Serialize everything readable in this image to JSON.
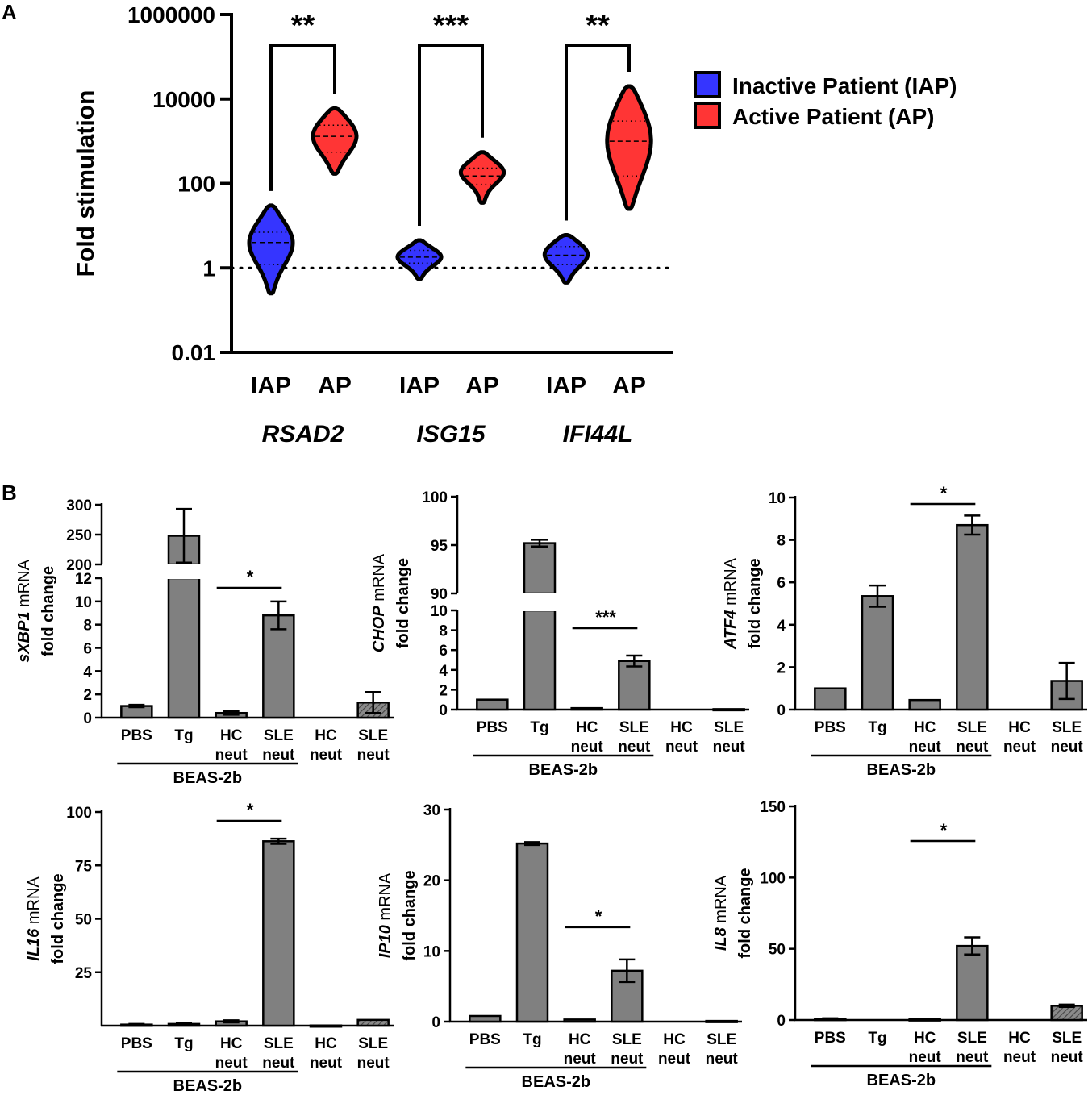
{
  "panel_labels": {
    "a": "A",
    "b": "B"
  },
  "colors": {
    "iap": "#3535ff",
    "ap": "#ff3535",
    "bar": "#808080",
    "hatch": "#555555"
  },
  "chart_data": [
    {
      "id": "A",
      "type": "violin",
      "title": "",
      "ylabel": "Fold stimulation",
      "yscale": "log",
      "ylim": [
        0.01,
        1000000
      ],
      "yticks": [
        0.01,
        1,
        100,
        10000,
        1000000
      ],
      "ytick_labels": [
        "0.01",
        "1",
        "100",
        "10000",
        "1000000"
      ],
      "reference_line": 1,
      "legend": {
        "placement": "right",
        "entries": [
          {
            "label": "Inactive Patient (IAP)",
            "color": "#3535ff"
          },
          {
            "label": "Active Patient (AP)",
            "color": "#ff3535"
          }
        ]
      },
      "groups": [
        {
          "gene": "RSAD2",
          "significance": "**",
          "violins": [
            {
              "label": "IAP",
              "group": "iap",
              "min": 0.25,
              "max": 30,
              "q1": 1.2,
              "median": 4,
              "q3": 7,
              "mode": 4.5
            },
            {
              "label": "AP",
              "group": "ap",
              "min": 170,
              "max": 6000,
              "q1": 550,
              "median": 1300,
              "q3": 2400,
              "mode": 1500
            }
          ]
        },
        {
          "gene": "ISG15",
          "significance": "***",
          "violins": [
            {
              "label": "IAP",
              "group": "iap",
              "min": 0.55,
              "max": 4.5,
              "q1": 1.3,
              "median": 1.8,
              "q3": 2.6,
              "mode": 1.9
            },
            {
              "label": "AP",
              "group": "ap",
              "min": 35,
              "max": 550,
              "q1": 95,
              "median": 150,
              "q3": 230,
              "mode": 200
            }
          ]
        },
        {
          "gene": "IFI44L",
          "significance": "**",
          "violins": [
            {
              "label": "IAP",
              "group": "iap",
              "min": 0.45,
              "max": 6,
              "q1": 1.2,
              "median": 2.0,
              "q3": 3.2,
              "mode": 2.3
            },
            {
              "label": "AP",
              "group": "ap",
              "min": 25,
              "max": 20000,
              "q1": 150,
              "median": 1000,
              "q3": 3000,
              "mode": 1300
            }
          ]
        }
      ]
    },
    {
      "id": "B1",
      "type": "bar",
      "gene": "sXBP1",
      "ylabel_suffix": "mRNA",
      "ylabel2": "fold change",
      "broken_axis": true,
      "lower_ylim": [
        0,
        12
      ],
      "upper_ylim": [
        200,
        300
      ],
      "lower_ticks": [
        0,
        2,
        4,
        6,
        8,
        10,
        12
      ],
      "upper_ticks": [
        200,
        250,
        300
      ],
      "categories": [
        "PBS",
        "Tg",
        "HC\nneut",
        "SLE\nneut",
        "HC\nneut",
        "SLE\nneut"
      ],
      "values": [
        1.0,
        248,
        0.4,
        8.8,
        0.0,
        1.3
      ],
      "errors": [
        0.1,
        45,
        0.15,
        1.2,
        0.0,
        0.9
      ],
      "hatched": [
        false,
        false,
        false,
        false,
        false,
        true
      ],
      "significance": {
        "between": [
          2,
          3
        ],
        "label": "*"
      },
      "group_label": "BEAS-2b",
      "group_span": [
        0,
        3
      ]
    },
    {
      "id": "B2",
      "type": "bar",
      "gene": "CHOP",
      "ylabel_suffix": "mRNA",
      "ylabel2": "fold change",
      "broken_axis": true,
      "lower_ylim": [
        0,
        10
      ],
      "upper_ylim": [
        90,
        100
      ],
      "lower_ticks": [
        0,
        2,
        4,
        6,
        8,
        10
      ],
      "upper_ticks": [
        90,
        95,
        100
      ],
      "categories": [
        "PBS",
        "Tg",
        "HC\nneut",
        "SLE\nneut",
        "HC\nneut",
        "SLE\nneut"
      ],
      "values": [
        1.0,
        95.2,
        0.15,
        4.9,
        0.0,
        0.05
      ],
      "errors": [
        0.0,
        0.35,
        0.0,
        0.55,
        0.0,
        0.0
      ],
      "hatched": [
        false,
        false,
        false,
        false,
        false,
        false
      ],
      "significance": {
        "between": [
          2,
          3
        ],
        "label": "***"
      },
      "group_label": "BEAS-2b",
      "group_span": [
        0,
        3
      ]
    },
    {
      "id": "B3",
      "type": "bar",
      "gene": "ATF4",
      "ylabel_suffix": "mRNA",
      "ylabel2": "fold change",
      "ylim": [
        0,
        10
      ],
      "yticks": [
        0,
        2,
        4,
        6,
        8,
        10
      ],
      "categories": [
        "PBS",
        "Tg",
        "HC\nneut",
        "SLE\nneut",
        "HC\nneut",
        "SLE\nneut"
      ],
      "values": [
        1.0,
        5.35,
        0.45,
        8.7,
        0.0,
        1.35
      ],
      "errors": [
        0.0,
        0.5,
        0.0,
        0.45,
        0.0,
        0.85
      ],
      "hatched": [
        false,
        false,
        false,
        false,
        false,
        false
      ],
      "significance": {
        "between": [
          2,
          3
        ],
        "label": "*"
      },
      "group_label": "BEAS-2b",
      "group_span": [
        0,
        3
      ]
    },
    {
      "id": "B4",
      "type": "bar",
      "gene": "IL16",
      "ylabel_suffix": "mRNA",
      "ylabel2": "fold change",
      "ylim": [
        0,
        100
      ],
      "yticks": [
        25,
        50,
        75,
        100
      ],
      "categories": [
        "PBS",
        "Tg",
        "HC\nneut",
        "SLE\nneut",
        "HC\nneut",
        "SLE\nneut"
      ],
      "values": [
        0.5,
        0.8,
        2.0,
        86.3,
        0.1,
        2.7
      ],
      "errors": [
        0.3,
        0.5,
        0.5,
        1.2,
        0.0,
        0.0
      ],
      "hatched": [
        false,
        false,
        false,
        false,
        false,
        true
      ],
      "significance": {
        "between": [
          2,
          3
        ],
        "label": "*"
      },
      "group_label": "BEAS-2b",
      "group_span": [
        0,
        3
      ]
    },
    {
      "id": "B5",
      "type": "bar",
      "gene": "IP10",
      "ylabel_suffix": "mRNA",
      "ylabel2": "fold change",
      "ylim": [
        0,
        30
      ],
      "yticks": [
        0,
        10,
        20,
        30
      ],
      "categories": [
        "PBS",
        "Tg",
        "HC\nneut",
        "SLE\nneut",
        "HC\nneut",
        "SLE\nneut"
      ],
      "values": [
        0.8,
        25.2,
        0.3,
        7.2,
        0.0,
        0.1
      ],
      "errors": [
        0.0,
        0.2,
        0.0,
        1.6,
        0.0,
        0.0
      ],
      "hatched": [
        false,
        false,
        false,
        false,
        false,
        false
      ],
      "significance": {
        "between": [
          2,
          3
        ],
        "label": "*"
      },
      "group_label": "BEAS-2b",
      "group_span": [
        0,
        3
      ]
    },
    {
      "id": "B6",
      "type": "bar",
      "gene": "IL8",
      "ylabel_suffix": "mRNA",
      "ylabel2": "fold change",
      "ylim": [
        0,
        150
      ],
      "yticks": [
        0,
        50,
        100,
        150
      ],
      "categories": [
        "PBS",
        "Tg",
        "HC\nneut",
        "SLE\nneut",
        "HC\nneut",
        "SLE\nneut"
      ],
      "values": [
        0.8,
        0.0,
        0.5,
        52.0,
        0.0,
        10.0
      ],
      "errors": [
        0.4,
        0.0,
        0.0,
        6.0,
        0.0,
        0.8
      ],
      "hatched": [
        false,
        false,
        false,
        false,
        false,
        true
      ],
      "significance": {
        "between": [
          2,
          3
        ],
        "label": "*"
      },
      "group_label": "BEAS-2b",
      "group_span": [
        0,
        3
      ]
    }
  ]
}
